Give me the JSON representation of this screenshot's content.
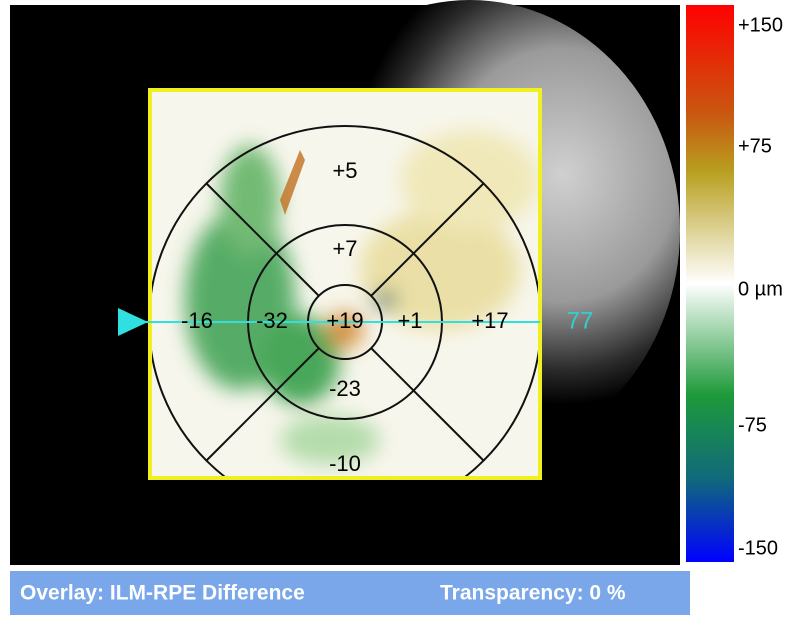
{
  "map": {
    "sector_values": [
      "+5",
      "+7",
      "-16",
      "-32",
      "+19",
      "+1",
      "+17",
      "-23",
      "-10"
    ],
    "scan_line_label": "77"
  },
  "color_scale": {
    "labels": [
      "+150",
      "+75",
      "0 µm",
      "-75",
      "-150"
    ]
  },
  "status_bar": {
    "overlay": "Overlay: ILM-RPE Difference",
    "transparency": "Transparency: 0 %"
  }
}
